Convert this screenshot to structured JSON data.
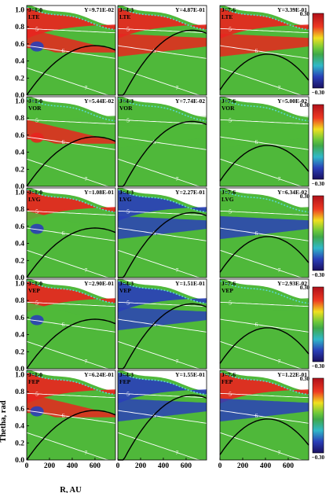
{
  "chart_data": {
    "type": "heatmap",
    "xlabel": "R, AU",
    "ylabel": "Thetha, rad",
    "x_ticks": [
      "0",
      "200",
      "400",
      "600"
    ],
    "y_ticks": [
      "0.0",
      "0.2",
      "0.4",
      "0.6",
      "0.8",
      "1.0"
    ],
    "xlim": [
      0,
      780
    ],
    "ylim": [
      0,
      1.05
    ],
    "colorbar": {
      "min_label": "−0.30",
      "max_label": "0.30",
      "min": -0.3,
      "max": 0.3
    },
    "contour_labels": [
      "5",
      "6",
      "7"
    ],
    "transitions": [
      "J=1-0",
      "J=4-3",
      "J=7-6"
    ],
    "methods": [
      "LTE",
      "VOR",
      "LVG",
      "VEP",
      "FEP"
    ],
    "panels": [
      [
        {
          "trans": "J=1-0",
          "y": "Y=9.71E-02",
          "method": "LTE"
        },
        {
          "trans": "J=4-3",
          "y": "Y=4.87E-01",
          "method": "LTE"
        },
        {
          "trans": "J=7-6",
          "y": "Y=3.39E-01",
          "method": "LTE"
        }
      ],
      [
        {
          "trans": "J=1-0",
          "y": "Y=5.44E-02",
          "method": "VOR"
        },
        {
          "trans": "J=4-3",
          "y": "Y=7.74E-02",
          "method": "VOR"
        },
        {
          "trans": "J=7-6",
          "y": "Y=5.00E-02",
          "method": "VOR"
        }
      ],
      [
        {
          "trans": "J=1-0",
          "y": "Y=1.08E-01",
          "method": "LVG"
        },
        {
          "trans": "J=4-3",
          "y": "Y=2.27E-01",
          "method": "LVG"
        },
        {
          "trans": "J=7-6",
          "y": "Y=6.34E-02",
          "method": "LVG"
        }
      ],
      [
        {
          "trans": "J=1-0",
          "y": "Y=2.90E-01",
          "method": "VEP"
        },
        {
          "trans": "J=4-3",
          "y": "Y=1.51E-01",
          "method": "VEP"
        },
        {
          "trans": "J=7-6",
          "y": "Y=2.93E-02",
          "method": "VEP"
        }
      ],
      [
        {
          "trans": "J=1-0",
          "y": "Y=6.24E-01",
          "method": "FEP"
        },
        {
          "trans": "J=4-3",
          "y": "Y=1.55E-01",
          "method": "FEP"
        },
        {
          "trans": "J=7-6",
          "y": "Y=1.22E-01",
          "method": "FEP"
        }
      ]
    ],
    "colors": {
      "red": "#e8251f",
      "green": "#4fb83a",
      "blue": "#2a3fb8",
      "cyan": "#5ad8d0",
      "contour": "#ffffff",
      "curve": "#000000"
    }
  }
}
